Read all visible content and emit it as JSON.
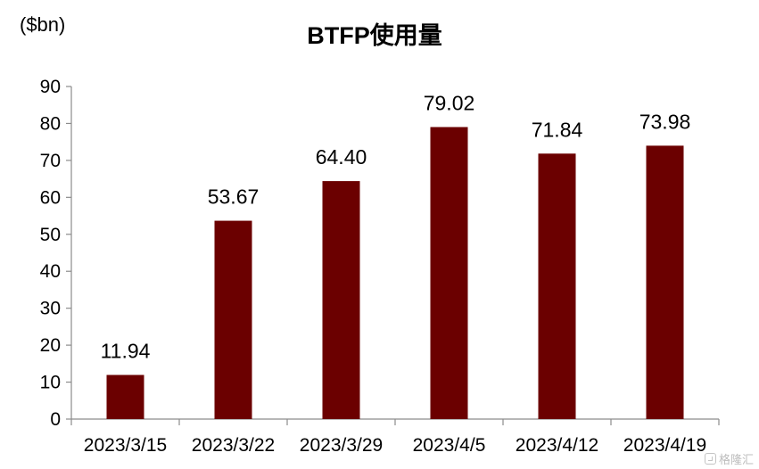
{
  "chart_data": {
    "type": "bar",
    "title": "BTFP使用量",
    "unit_label": "($bn)",
    "categories": [
      "2023/3/15",
      "2023/3/22",
      "2023/3/29",
      "2023/4/5",
      "2023/4/12",
      "2023/4/19"
    ],
    "values": [
      11.94,
      53.67,
      64.4,
      79.02,
      71.84,
      73.98
    ],
    "value_labels": [
      "11.94",
      "53.67",
      "64.40",
      "79.02",
      "71.84",
      "73.98"
    ],
    "yticks": [
      "0",
      "10",
      "20",
      "30",
      "40",
      "50",
      "60",
      "70",
      "80",
      "90"
    ],
    "ylim": [
      0,
      90
    ],
    "grid": false,
    "legend": "none",
    "bar_color": "#6b0000"
  },
  "watermark": {
    "text": "格隆汇"
  }
}
